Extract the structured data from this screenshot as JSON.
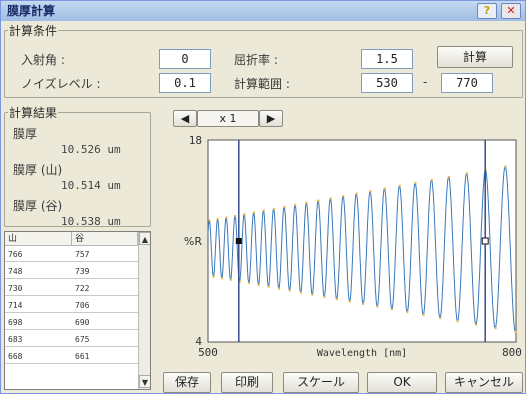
{
  "window": {
    "title": "膜厚計算",
    "help_icon": "question-icon",
    "close_icon": "close-icon"
  },
  "conditions": {
    "legend": "計算条件",
    "incidence_label": "入射角 :",
    "incidence_value": "0",
    "noise_label": "ノイズレベル :",
    "noise_value": "0.1",
    "refractive_label": "屈折率 :",
    "refractive_value": "1.5",
    "range_label": "計算範囲 :",
    "range_from": "530",
    "range_sep": "-",
    "range_to": "770",
    "calc_button": "計算"
  },
  "results": {
    "legend": "計算結果",
    "thickness_label": "膜厚",
    "thickness_value": "10.526 um",
    "peak_label": "膜厚 (山)",
    "peak_value": "10.514 um",
    "valley_label": "膜厚 (谷)",
    "valley_value": "10.538 um"
  },
  "table": {
    "headers": [
      "山",
      "谷"
    ],
    "rows": [
      [
        "766",
        "757"
      ],
      [
        "748",
        "739"
      ],
      [
        "730",
        "722"
      ],
      [
        "714",
        "706"
      ],
      [
        "698",
        "690"
      ],
      [
        "683",
        "675"
      ],
      [
        "668",
        "661"
      ]
    ]
  },
  "nav": {
    "prev": "◀",
    "zoom": "x 1",
    "next": "▶"
  },
  "chart_data": {
    "type": "line",
    "xlabel": "Wavelength [nm]",
    "ylabel": "%R",
    "xlim": [
      500,
      800
    ],
    "ylim": [
      4,
      18
    ],
    "x_ticks": [
      "500",
      "800"
    ],
    "y_ticks": [
      "18",
      "4"
    ],
    "calc_range": [
      530,
      770
    ],
    "series": [
      {
        "model": "interference",
        "thickness_um": 10.526,
        "refractive_index": 1.5,
        "mean": 10.5,
        "amp_start": 1.9,
        "amp_end": 5.8
      }
    ],
    "line_color": "#3a78b8",
    "marker_color": "#e8b84a",
    "cursor_color": "#2a3f8a"
  },
  "buttons": {
    "save": "保存",
    "print": "印刷",
    "scale": "スケール",
    "ok": "OK",
    "cancel": "キャンセル"
  }
}
